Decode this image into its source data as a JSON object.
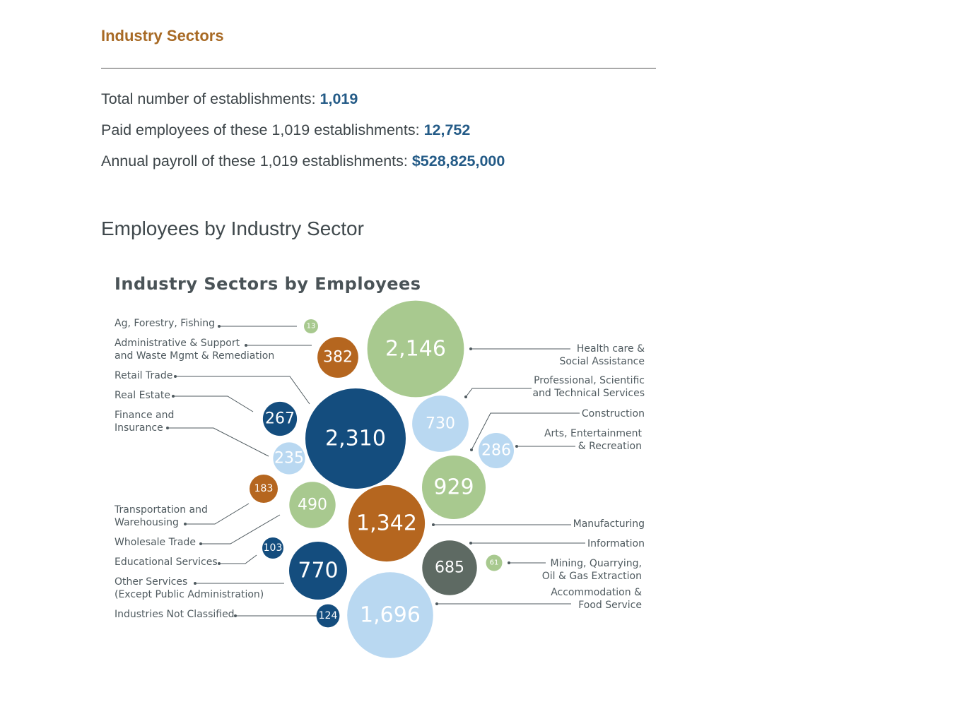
{
  "header": {
    "section_title": "Industry Sectors",
    "stats": [
      {
        "label": "Total number of establishments: ",
        "value": "1,019"
      },
      {
        "label": "Paid employees of these 1,019 establishments: ",
        "value": "12,752"
      },
      {
        "label": "Annual payroll of these 1,019 establishments: ",
        "value": "$528,825,000"
      }
    ],
    "subsection_title": "Employees by Industry Sector"
  },
  "colors": {
    "dark_blue": "#144d7e",
    "light_blue": "#b9d8f1",
    "green": "#a8c98f",
    "orange": "#b5661f",
    "gray": "#5e6a63",
    "title_accent": "#a86a25",
    "stat_value": "#245b87"
  },
  "chart_data": {
    "type": "bubble",
    "title": "Industry Sectors by Employees",
    "series": [
      {
        "name": "Ag, Forestry, Fishing",
        "value": 13,
        "display": "13",
        "color": "green",
        "label_lines": [
          "Ag, Forestry, Fishing"
        ]
      },
      {
        "name": "Administrative & Support and Waste Mgmt & Remediation",
        "value": 382,
        "display": "382",
        "color": "orange",
        "label_lines": [
          "Administrative & Support",
          "and Waste Mgmt & Remediation"
        ]
      },
      {
        "name": "Retail Trade",
        "value": 2310,
        "display": "2,310",
        "color": "dark_blue",
        "label_lines": [
          "Retail Trade"
        ]
      },
      {
        "name": "Real Estate",
        "value": 267,
        "display": "267",
        "color": "dark_blue",
        "label_lines": [
          "Real Estate"
        ]
      },
      {
        "name": "Finance and Insurance",
        "value": 235,
        "display": "235",
        "color": "light_blue",
        "label_lines": [
          "Finance and",
          "Insurance"
        ]
      },
      {
        "name": "Transportation and Warehousing",
        "value": 183,
        "display": "183",
        "color": "orange",
        "label_lines": [
          "Transportation and",
          "Warehousing"
        ]
      },
      {
        "name": "Wholesale Trade",
        "value": 490,
        "display": "490",
        "color": "green",
        "label_lines": [
          "Wholesale Trade"
        ]
      },
      {
        "name": "Educational Services",
        "value": 103,
        "display": "103",
        "color": "dark_blue",
        "label_lines": [
          "Educational Services"
        ]
      },
      {
        "name": "Other Services (Except Public Administration)",
        "value": 770,
        "display": "770",
        "color": "dark_blue",
        "label_lines": [
          "Other Services",
          "(Except Public Administration)"
        ]
      },
      {
        "name": "Industries Not Classified",
        "value": 124,
        "display": "124",
        "color": "dark_blue",
        "label_lines": [
          "Industries Not Classified"
        ]
      },
      {
        "name": "Health care & Social Assistance",
        "value": 2146,
        "display": "2,146",
        "color": "green",
        "label_lines": [
          "Health care &",
          "Social Assistance"
        ]
      },
      {
        "name": "Professional, Scientific and Technical Services",
        "value": 730,
        "display": "730",
        "color": "light_blue",
        "label_lines": [
          "Professional, Scientific",
          "and Technical Services"
        ]
      },
      {
        "name": "Construction",
        "value": 929,
        "display": "929",
        "color": "green",
        "label_lines": [
          "Construction"
        ]
      },
      {
        "name": "Arts, Entertainment & Recreation",
        "value": 286,
        "display": "286",
        "color": "light_blue",
        "label_lines": [
          "Arts, Entertainment",
          "& Recreation"
        ]
      },
      {
        "name": "Manufacturing",
        "value": 1342,
        "display": "1,342",
        "color": "orange",
        "label_lines": [
          "Manufacturing"
        ]
      },
      {
        "name": "Information",
        "value": 685,
        "display": "685",
        "color": "gray",
        "label_lines": [
          "Information"
        ]
      },
      {
        "name": "Mining, Quarrying, Oil & Gas Extraction",
        "value": 61,
        "display": "61",
        "color": "green",
        "label_lines": [
          "Mining, Quarrying,",
          "Oil & Gas Extraction"
        ]
      },
      {
        "name": "Accommodation & Food Service",
        "value": 1696,
        "display": "1,696",
        "color": "light_blue",
        "label_lines": [
          "Accommodation &",
          "Food Service"
        ]
      }
    ]
  }
}
